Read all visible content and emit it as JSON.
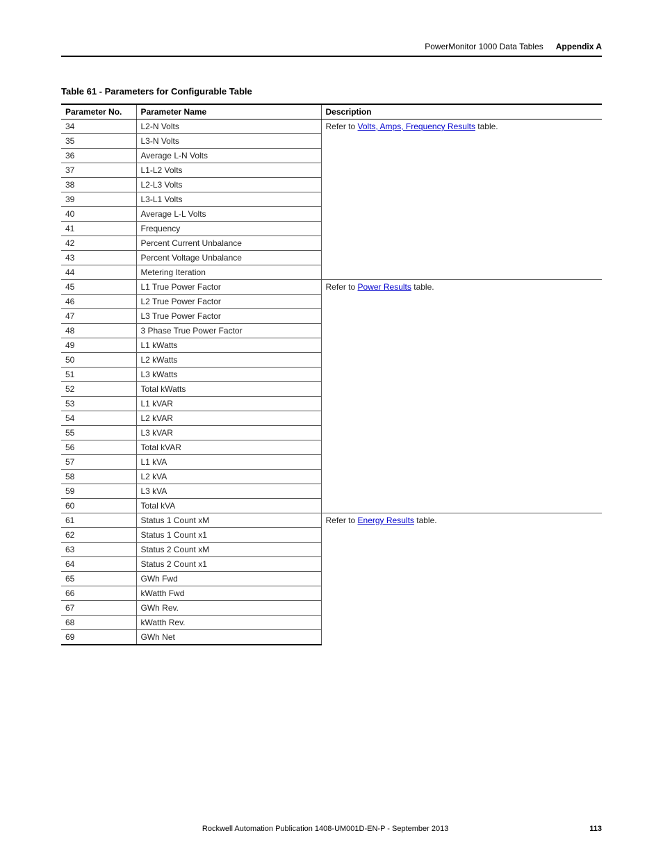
{
  "header": {
    "doc_title": "PowerMonitor 1000 Data Tables",
    "appendix": "Appendix A"
  },
  "table_title": "Table 61 - Parameters for Configurable Table",
  "columns": {
    "c1": "Parameter No.",
    "c2": "Parameter Name",
    "c3": "Description"
  },
  "groups": [
    {
      "desc_prefix": "Refer to ",
      "desc_link": "Volts, Amps, Frequency Results",
      "desc_suffix": " table.",
      "rows": [
        {
          "no": "34",
          "name": "L2-N Volts"
        },
        {
          "no": "35",
          "name": "L3-N Volts"
        },
        {
          "no": "36",
          "name": "Average L-N Volts"
        },
        {
          "no": "37",
          "name": "L1-L2 Volts"
        },
        {
          "no": "38",
          "name": "L2-L3 Volts"
        },
        {
          "no": "39",
          "name": "L3-L1 Volts"
        },
        {
          "no": "40",
          "name": "Average L-L Volts"
        },
        {
          "no": "41",
          "name": "Frequency"
        },
        {
          "no": "42",
          "name": "Percent Current Unbalance"
        },
        {
          "no": "43",
          "name": "Percent Voltage Unbalance"
        },
        {
          "no": "44",
          "name": "Metering Iteration"
        }
      ]
    },
    {
      "desc_prefix": "Refer to ",
      "desc_link": "Power Results",
      "desc_suffix": " table.",
      "rows": [
        {
          "no": "45",
          "name": "L1 True Power Factor"
        },
        {
          "no": "46",
          "name": "L2 True Power Factor"
        },
        {
          "no": "47",
          "name": "L3 True Power Factor"
        },
        {
          "no": "48",
          "name": "3 Phase True Power Factor"
        },
        {
          "no": "49",
          "name": "L1 kWatts"
        },
        {
          "no": "50",
          "name": "L2 kWatts"
        },
        {
          "no": "51",
          "name": "L3 kWatts"
        },
        {
          "no": "52",
          "name": "Total kWatts"
        },
        {
          "no": "53",
          "name": "L1 kVAR"
        },
        {
          "no": "54",
          "name": "L2 kVAR"
        },
        {
          "no": "55",
          "name": "L3 kVAR"
        },
        {
          "no": "56",
          "name": "Total kVAR"
        },
        {
          "no": "57",
          "name": "L1 kVA"
        },
        {
          "no": "58",
          "name": "L2 kVA"
        },
        {
          "no": "59",
          "name": "L3 kVA"
        },
        {
          "no": "60",
          "name": "Total kVA"
        }
      ]
    },
    {
      "desc_prefix": "Refer to ",
      "desc_link": "Energy Results",
      "desc_suffix": " table.",
      "rows": [
        {
          "no": "61",
          "name": "Status 1 Count xM"
        },
        {
          "no": "62",
          "name": "Status 1 Count x1"
        },
        {
          "no": "63",
          "name": "Status 2 Count xM"
        },
        {
          "no": "64",
          "name": "Status 2 Count x1"
        },
        {
          "no": "65",
          "name": "GWh Fwd"
        },
        {
          "no": "66",
          "name": "kWatth Fwd"
        },
        {
          "no": "67",
          "name": "GWh Rev."
        },
        {
          "no": "68",
          "name": "kWatth Rev."
        },
        {
          "no": "69",
          "name": "GWh Net"
        }
      ]
    }
  ],
  "footer": {
    "publication": "Rockwell Automation Publication 1408-UM001D-EN-P - September 2013",
    "page": "113"
  }
}
